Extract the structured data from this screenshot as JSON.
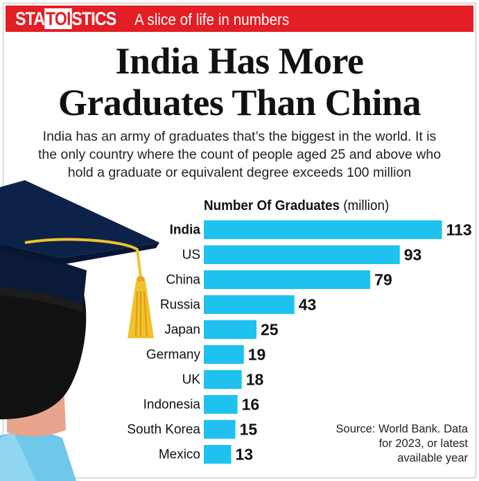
{
  "header": {
    "brand_pre": "STA",
    "brand_mid": "TOI",
    "brand_post": "STICS",
    "tagline": "A slice of life in numbers"
  },
  "title_line1": "India Has More",
  "title_line2": "Graduates Than China",
  "subtitle_lines": [
    "India has an army of graduates that’s the biggest in the world. It is",
    "the only country where the count of people aged 25 and above who",
    "hold a graduate or equivalent degree exceeds 100 million"
  ],
  "chart_data": {
    "type": "bar",
    "orientation": "horizontal",
    "title_bold": "Number Of Graduates",
    "title_unit": "(million)",
    "categories": [
      "India",
      "US",
      "China",
      "Russia",
      "Japan",
      "Germany",
      "UK",
      "Indonesia",
      "South Korea",
      "Mexico"
    ],
    "values": [
      113,
      93,
      79,
      43,
      25,
      19,
      18,
      16,
      15,
      13
    ],
    "highlight": "India",
    "bar_color": "#1fc2ef",
    "grid": false,
    "legend": "none"
  },
  "source_lines": [
    "Source:  World Bank. Data",
    "for 2023, or latest",
    "available year"
  ],
  "colors": {
    "banner": "#e31e24",
    "bar": "#1fc2ef",
    "cap": "#0d2248",
    "tassel": "#f2c12e",
    "skin": "#e8a48c",
    "shirt": "#6fc8e9"
  }
}
